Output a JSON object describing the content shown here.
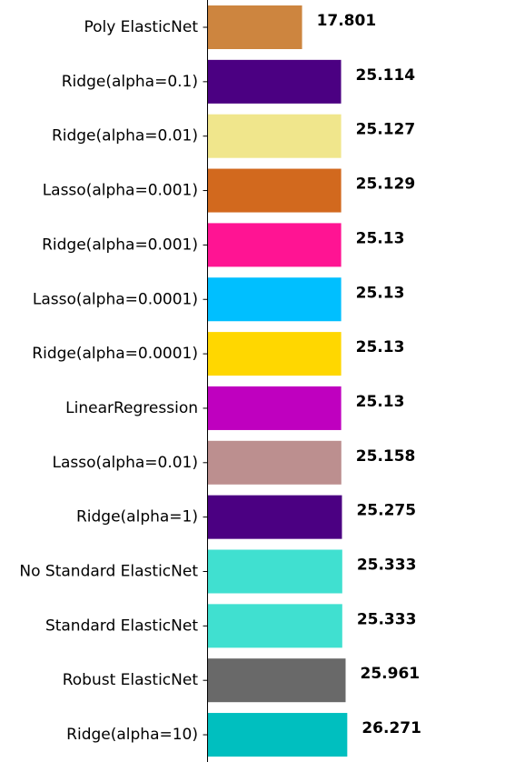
{
  "chart_data": {
    "type": "bar",
    "orientation": "horizontal",
    "categories": [
      "Poly ElasticNet",
      "Ridge(alpha=0.1)",
      "Ridge(alpha=0.01)",
      "Lasso(alpha=0.001)",
      "Ridge(alpha=0.001)",
      "Lasso(alpha=0.0001)",
      "Ridge(alpha=0.0001)",
      "LinearRegression",
      "Lasso(alpha=0.01)",
      "Ridge(alpha=1)",
      "No Standard ElasticNet",
      "Standard ElasticNet",
      "Robust ElasticNet",
      "Ridge(alpha=10)"
    ],
    "values": [
      17.801,
      25.114,
      25.127,
      25.129,
      25.13,
      25.13,
      25.13,
      25.13,
      25.158,
      25.275,
      25.333,
      25.333,
      25.961,
      26.271
    ],
    "value_labels": [
      "17.801",
      "25.114",
      "25.127",
      "25.129",
      "25.13",
      "25.13",
      "25.13",
      "25.13",
      "25.158",
      "25.275",
      "25.333",
      "25.333",
      "25.961",
      "26.271"
    ],
    "colors": [
      "#cd853f",
      "#4b0082",
      "#f0e68c",
      "#d2691e",
      "#ff1493",
      "#00bfff",
      "#ffd700",
      "#bf00bf",
      "#bc8f8f",
      "#4b0082",
      "#40e0d0",
      "#40e0d0",
      "#696969",
      "#00bfbf"
    ],
    "title": "",
    "xlabel": "",
    "ylabel": "",
    "xlim": [
      0,
      26.3
    ],
    "grid": false,
    "legend": "none"
  }
}
